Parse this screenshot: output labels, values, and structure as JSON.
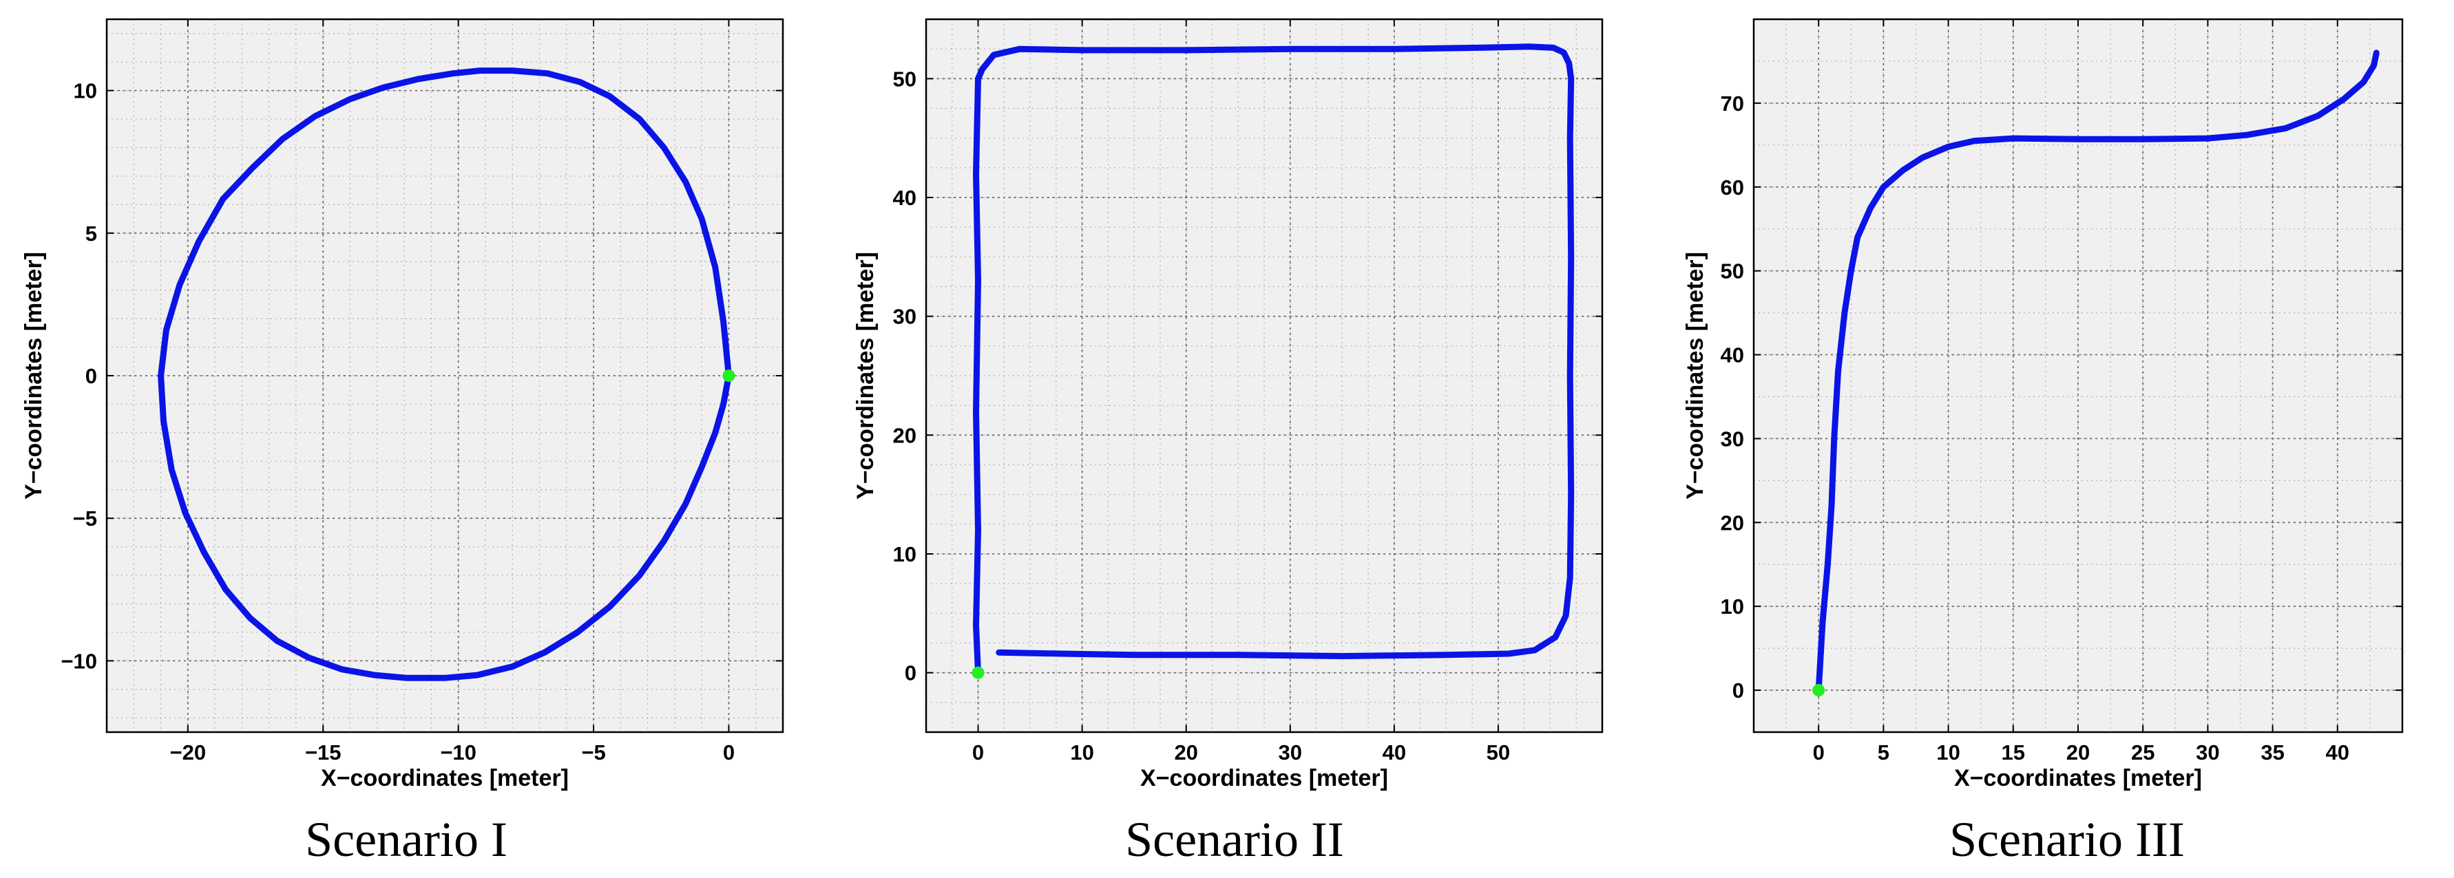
{
  "colors": {
    "plot_background": "#f0f0f0",
    "trajectory": "#0a14e6",
    "start_marker": "#22ee22",
    "grid_major": "#6e6e6e",
    "grid_minor": "#b0b0b0"
  },
  "chart_data": [
    {
      "type": "line",
      "caption": "Scenario I",
      "xlabel": "X−coordinates [meter]",
      "ylabel": "Y−coordinates [meter]",
      "xlim": [
        -23,
        2
      ],
      "ylim": [
        -12.5,
        12.5
      ],
      "xticks": [
        -20,
        -15,
        -10,
        -5,
        0
      ],
      "xtick_labels": [
        "−20",
        "−15",
        "−10",
        "−5",
        "0"
      ],
      "yticks": [
        -10,
        -5,
        0,
        5,
        10
      ],
      "ytick_labels": [
        "−10",
        "−5",
        "0",
        "5",
        "10"
      ],
      "grid": true,
      "minor_grid": true,
      "series": [
        {
          "x": [
            0,
            -0.2,
            -0.5,
            -1,
            -1.6,
            -2.4,
            -3.3,
            -4.4,
            -5.5,
            -6.7,
            -8,
            -9.2,
            -10.2,
            -11.5,
            -12.8,
            -14,
            -15.3,
            -16.5,
            -17.6,
            -18.7,
            -19.6,
            -20.3,
            -20.8,
            -21,
            -20.9,
            -20.6,
            -20.1,
            -19.4,
            -18.6,
            -17.7,
            -16.7,
            -15.5,
            -14.3,
            -13.1,
            -11.9,
            -10.5,
            -9.3,
            -8,
            -6.8,
            -5.6,
            -4.4,
            -3.3,
            -2.4,
            -1.6,
            -1,
            -0.5,
            -0.2,
            0
          ],
          "y": [
            0,
            1.9,
            3.8,
            5.5,
            6.8,
            8,
            9,
            9.8,
            10.3,
            10.6,
            10.7,
            10.7,
            10.6,
            10.4,
            10.1,
            9.7,
            9.1,
            8.3,
            7.3,
            6.2,
            4.7,
            3.2,
            1.6,
            0,
            -1.6,
            -3.3,
            -4.8,
            -6.2,
            -7.5,
            -8.5,
            -9.3,
            -9.9,
            -10.3,
            -10.5,
            -10.6,
            -10.6,
            -10.5,
            -10.2,
            -9.7,
            -9,
            -8.1,
            -7,
            -5.8,
            -4.5,
            -3.2,
            -2,
            -1,
            0
          ]
        }
      ],
      "start_point": {
        "x": 0,
        "y": 0
      }
    },
    {
      "type": "line",
      "caption": "Scenario II",
      "xlabel": "X−coordinates [meter]",
      "ylabel": "Y−coordinates [meter]",
      "xlim": [
        -5,
        60
      ],
      "ylim": [
        -5,
        55
      ],
      "xticks": [
        0,
        10,
        20,
        30,
        40,
        50
      ],
      "xtick_labels": [
        "0",
        "10",
        "20",
        "30",
        "40",
        "50"
      ],
      "yticks": [
        0,
        10,
        20,
        30,
        40,
        50
      ],
      "ytick_labels": [
        "0",
        "10",
        "20",
        "30",
        "40",
        "50"
      ],
      "grid": true,
      "minor_grid": true,
      "series": [
        {
          "x": [
            2,
            8,
            15,
            25,
            35,
            45,
            51,
            53.5,
            55.5,
            56.5,
            56.9,
            57,
            56.9,
            57,
            56.9,
            57,
            56.8,
            56.3,
            55.3,
            53,
            48,
            40,
            30,
            20,
            10,
            4,
            1.5,
            0.4,
            0,
            -0.2,
            0,
            -0.2,
            0,
            -0.2,
            0
          ],
          "y": [
            1.7,
            1.6,
            1.5,
            1.5,
            1.4,
            1.5,
            1.6,
            1.9,
            3,
            4.8,
            8,
            15,
            25,
            35,
            45,
            50,
            51.3,
            52.2,
            52.6,
            52.7,
            52.6,
            52.5,
            52.5,
            52.4,
            52.4,
            52.5,
            52,
            50.8,
            50,
            42,
            33,
            22,
            12,
            4,
            0
          ]
        }
      ],
      "start_point": {
        "x": 0,
        "y": 0
      }
    },
    {
      "type": "line",
      "caption": "Scenario III",
      "xlabel": "X−coordinates [meter]",
      "ylabel": "Y−coordinates [meter]",
      "xlim": [
        -5,
        45
      ],
      "ylim": [
        -5,
        80
      ],
      "xticks": [
        0,
        5,
        10,
        15,
        20,
        25,
        30,
        35,
        40
      ],
      "xtick_labels": [
        "0",
        "5",
        "10",
        "15",
        "20",
        "25",
        "30",
        "35",
        "40"
      ],
      "yticks": [
        0,
        10,
        20,
        30,
        40,
        50,
        60,
        70
      ],
      "ytick_labels": [
        "0",
        "10",
        "20",
        "30",
        "40",
        "50",
        "60",
        "70"
      ],
      "grid": true,
      "minor_grid": true,
      "series": [
        {
          "x": [
            0,
            0.3,
            0.7,
            1,
            1.2,
            1.5,
            2,
            2.5,
            3,
            4,
            5,
            6.5,
            8,
            10,
            12,
            15,
            20,
            25,
            30,
            33,
            36,
            38.5,
            40.5,
            42,
            42.8,
            43
          ],
          "y": [
            0,
            8,
            15,
            22,
            30,
            38,
            45,
            50,
            54,
            57.5,
            60,
            62,
            63.5,
            64.8,
            65.5,
            65.8,
            65.7,
            65.7,
            65.8,
            66.2,
            67,
            68.5,
            70.5,
            72.5,
            74.5,
            76
          ]
        }
      ],
      "start_point": {
        "x": 0,
        "y": 0
      }
    }
  ]
}
